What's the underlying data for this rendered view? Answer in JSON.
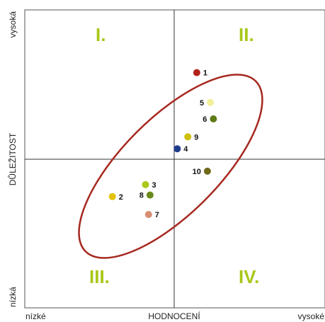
{
  "chart_data": {
    "type": "scatter",
    "title": "",
    "xlabel": "HODNOCENÍ",
    "ylabel": "DŮLEŽITOST",
    "x_low_label": "nízké",
    "x_high_label": "vysoké",
    "y_low_label": "nízká",
    "y_high_label": "vysoká",
    "xlim": [
      -1,
      1
    ],
    "ylim": [
      -1,
      1
    ],
    "grid": false,
    "quadrants": [
      {
        "label": "I.",
        "position": "top-left"
      },
      {
        "label": "II.",
        "position": "top-right"
      },
      {
        "label": "III.",
        "position": "bottom-left"
      },
      {
        "label": "IV.",
        "position": "bottom-right"
      }
    ],
    "points": [
      {
        "label": "1",
        "x": 0.15,
        "y": 0.58,
        "color": "#b22218"
      },
      {
        "label": "2",
        "x": -0.41,
        "y": -0.25,
        "color": "#e3c20d"
      },
      {
        "label": "3",
        "x": -0.19,
        "y": -0.17,
        "color": "#a9c91a"
      },
      {
        "label": "4",
        "x": 0.02,
        "y": 0.07,
        "color": "#1f3c8a"
      },
      {
        "label": "5",
        "x": 0.24,
        "y": 0.38,
        "color": "#f2ef9a"
      },
      {
        "label": "6",
        "x": 0.26,
        "y": 0.27,
        "color": "#5f7a16"
      },
      {
        "label": "7",
        "x": -0.17,
        "y": -0.37,
        "color": "#d88e72"
      },
      {
        "label": "8",
        "x": -0.16,
        "y": -0.24,
        "color": "#6a8a1c"
      },
      {
        "label": "9",
        "x": 0.09,
        "y": 0.15,
        "color": "#cfc00d"
      },
      {
        "label": "10",
        "x": 0.22,
        "y": -0.08,
        "color": "#6d6a18"
      }
    ],
    "ellipse_color": "#a6281f",
    "quadrant_label_color": "#a8c81a"
  }
}
